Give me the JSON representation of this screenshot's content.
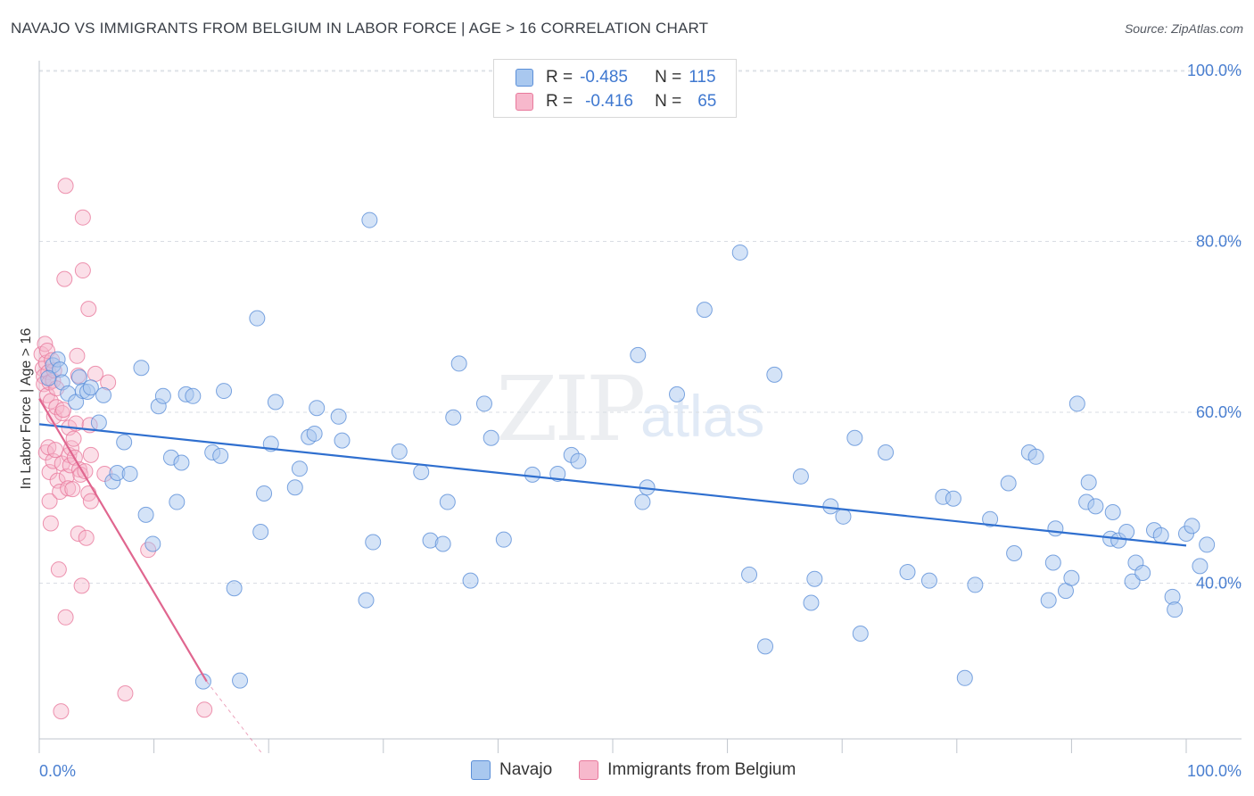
{
  "header": {
    "title": "NAVAJO VS IMMIGRANTS FROM BELGIUM IN LABOR FORCE | AGE > 16 CORRELATION CHART",
    "source": "Source: ZipAtlas.com"
  },
  "watermark": {
    "zip": "ZIP",
    "atlas": "atlas"
  },
  "legend": {
    "rows": [
      {
        "r_label": "R =",
        "r_value": "-0.485",
        "n_label": "N =",
        "n_value": "115"
      },
      {
        "r_label": "R =",
        "r_value": "-0.416",
        "n_label": "N =",
        "n_value": "65"
      }
    ]
  },
  "bottom_legend": {
    "series_a": "Navajo",
    "series_b": "Immigrants from Belgium"
  },
  "colors": {
    "navajo_fill": "#a9c8ef",
    "navajo_stroke": "#5b8fd8",
    "navajo_line": "#2f6fcf",
    "belgium_fill": "#f7b8cc",
    "belgium_stroke": "#e8799c",
    "belgium_line": "#e0668f",
    "tick_text": "#4a7fd0"
  },
  "chart_data": {
    "type": "scatter",
    "title": "NAVAJO VS IMMIGRANTS FROM BELGIUM IN LABOR FORCE | AGE > 16 CORRELATION CHART",
    "xlabel": "",
    "ylabel": "In Labor Force | Age > 16",
    "xlim": [
      0,
      100
    ],
    "ylim": [
      20,
      102
    ],
    "x_tick_labels": [
      "0.0%",
      "100.0%"
    ],
    "y_ticks": [
      40,
      60,
      80,
      100
    ],
    "y_tick_labels": [
      "40.0%",
      "60.0%",
      "80.0%",
      "100.0%"
    ],
    "series": [
      {
        "name": "Navajo",
        "R": -0.485,
        "N": 115,
        "trend": {
          "x": [
            0,
            100
          ],
          "y": [
            58.6,
            44.4
          ]
        },
        "points": [
          [
            1.2,
            65.5
          ],
          [
            1.6,
            66.2
          ],
          [
            1.8,
            65.0
          ],
          [
            2.0,
            63.5
          ],
          [
            2.5,
            62.2
          ],
          [
            3.2,
            61.2
          ],
          [
            3.5,
            64.1
          ],
          [
            3.8,
            62.5
          ],
          [
            4.2,
            62.4
          ],
          [
            4.5,
            62.9
          ],
          [
            5.2,
            58.8
          ],
          [
            5.6,
            62.0
          ],
          [
            6.4,
            51.9
          ],
          [
            6.8,
            52.9
          ],
          [
            7.4,
            56.5
          ],
          [
            7.9,
            52.8
          ],
          [
            8.9,
            65.2
          ],
          [
            9.3,
            48.0
          ],
          [
            9.9,
            44.6
          ],
          [
            10.4,
            60.7
          ],
          [
            10.8,
            61.9
          ],
          [
            11.5,
            54.7
          ],
          [
            12.0,
            49.5
          ],
          [
            12.4,
            54.1
          ],
          [
            12.8,
            62.1
          ],
          [
            13.4,
            61.9
          ],
          [
            14.3,
            28.5
          ],
          [
            15.1,
            55.3
          ],
          [
            15.8,
            54.9
          ],
          [
            16.1,
            62.5
          ],
          [
            17.0,
            39.4
          ],
          [
            17.5,
            28.6
          ],
          [
            19.0,
            71.0
          ],
          [
            19.3,
            46.0
          ],
          [
            19.6,
            50.5
          ],
          [
            20.2,
            56.3
          ],
          [
            20.6,
            61.2
          ],
          [
            22.3,
            51.2
          ],
          [
            22.7,
            53.4
          ],
          [
            23.5,
            57.1
          ],
          [
            24.0,
            57.5
          ],
          [
            24.2,
            60.5
          ],
          [
            26.1,
            59.5
          ],
          [
            26.4,
            56.7
          ],
          [
            28.5,
            38.0
          ],
          [
            28.8,
            82.5
          ],
          [
            29.1,
            44.8
          ],
          [
            31.4,
            55.4
          ],
          [
            33.3,
            53.0
          ],
          [
            34.1,
            45.0
          ],
          [
            35.2,
            44.6
          ],
          [
            35.6,
            49.5
          ],
          [
            36.1,
            59.4
          ],
          [
            36.6,
            65.7
          ],
          [
            37.6,
            40.3
          ],
          [
            38.8,
            61.0
          ],
          [
            39.4,
            57.0
          ],
          [
            40.5,
            45.1
          ],
          [
            43.0,
            52.7
          ],
          [
            45.2,
            52.8
          ],
          [
            46.4,
            55.0
          ],
          [
            47.0,
            54.3
          ],
          [
            52.2,
            66.7
          ],
          [
            52.6,
            49.5
          ],
          [
            53.0,
            51.2
          ],
          [
            55.6,
            62.1
          ],
          [
            58.0,
            72.0
          ],
          [
            61.1,
            78.7
          ],
          [
            61.9,
            41.0
          ],
          [
            63.3,
            32.6
          ],
          [
            64.1,
            64.4
          ],
          [
            66.4,
            52.5
          ],
          [
            67.3,
            37.7
          ],
          [
            67.6,
            40.5
          ],
          [
            69.0,
            49.0
          ],
          [
            70.1,
            47.8
          ],
          [
            71.1,
            57.0
          ],
          [
            71.6,
            34.1
          ],
          [
            73.8,
            55.3
          ],
          [
            75.7,
            41.3
          ],
          [
            77.6,
            40.3
          ],
          [
            78.8,
            50.1
          ],
          [
            79.7,
            49.9
          ],
          [
            80.7,
            28.9
          ],
          [
            81.6,
            39.8
          ],
          [
            82.9,
            47.5
          ],
          [
            84.5,
            51.7
          ],
          [
            85.0,
            43.5
          ],
          [
            86.3,
            55.3
          ],
          [
            86.9,
            54.8
          ],
          [
            88.0,
            38.0
          ],
          [
            88.4,
            42.4
          ],
          [
            88.6,
            46.4
          ],
          [
            89.5,
            39.1
          ],
          [
            90.0,
            40.6
          ],
          [
            90.5,
            61.0
          ],
          [
            91.3,
            49.5
          ],
          [
            91.5,
            51.8
          ],
          [
            92.1,
            49.0
          ],
          [
            93.4,
            45.2
          ],
          [
            93.6,
            48.3
          ],
          [
            94.1,
            45.0
          ],
          [
            94.8,
            46.0
          ],
          [
            95.3,
            40.2
          ],
          [
            95.6,
            42.4
          ],
          [
            96.2,
            41.2
          ],
          [
            97.2,
            46.2
          ],
          [
            97.8,
            45.6
          ],
          [
            98.8,
            38.4
          ],
          [
            99.0,
            36.9
          ],
          [
            100.0,
            45.8
          ],
          [
            100.5,
            46.7
          ],
          [
            101.2,
            42.0
          ],
          [
            101.8,
            44.5
          ],
          [
            0.8,
            64.0
          ]
        ]
      },
      {
        "name": "Immigrants from Belgium",
        "R": -0.416,
        "N": 65,
        "trend": {
          "x": [
            0,
            14.6
          ],
          "y": [
            61.6,
            28.5
          ]
        },
        "trend_dashed": {
          "x": [
            14.6,
            19.4
          ],
          "y": [
            28.5,
            18.2
          ]
        },
        "points": [
          [
            0.2,
            66.8
          ],
          [
            0.3,
            65.1
          ],
          [
            0.4,
            64.2
          ],
          [
            0.4,
            63.3
          ],
          [
            0.5,
            68.0
          ],
          [
            0.6,
            65.8
          ],
          [
            0.7,
            62.0
          ],
          [
            0.7,
            67.2
          ],
          [
            0.8,
            64.7
          ],
          [
            0.9,
            63.5
          ],
          [
            1.0,
            61.3
          ],
          [
            1.1,
            66.1
          ],
          [
            1.2,
            63.7
          ],
          [
            1.3,
            64.9
          ],
          [
            1.5,
            62.8
          ],
          [
            0.6,
            55.3
          ],
          [
            0.8,
            55.9
          ],
          [
            0.9,
            53.0
          ],
          [
            0.9,
            49.6
          ],
          [
            1.0,
            47.0
          ],
          [
            1.2,
            54.3
          ],
          [
            1.3,
            59.5
          ],
          [
            1.4,
            55.6
          ],
          [
            1.5,
            60.6
          ],
          [
            1.6,
            52.0
          ],
          [
            1.7,
            41.6
          ],
          [
            1.8,
            50.7
          ],
          [
            1.9,
            25.0
          ],
          [
            2.0,
            54.0
          ],
          [
            2.0,
            59.9
          ],
          [
            2.1,
            60.3
          ],
          [
            2.2,
            75.6
          ],
          [
            2.3,
            36.0
          ],
          [
            2.3,
            86.5
          ],
          [
            2.4,
            52.5
          ],
          [
            2.5,
            51.1
          ],
          [
            2.6,
            55.0
          ],
          [
            2.6,
            58.2
          ],
          [
            2.7,
            53.8
          ],
          [
            2.8,
            55.8
          ],
          [
            2.9,
            51.0
          ],
          [
            3.0,
            56.9
          ],
          [
            3.1,
            54.7
          ],
          [
            3.2,
            58.7
          ],
          [
            3.3,
            66.6
          ],
          [
            3.4,
            64.3
          ],
          [
            3.4,
            45.8
          ],
          [
            3.5,
            53.3
          ],
          [
            3.6,
            52.7
          ],
          [
            3.7,
            39.7
          ],
          [
            3.8,
            76.6
          ],
          [
            3.8,
            82.8
          ],
          [
            4.0,
            53.1
          ],
          [
            4.1,
            45.3
          ],
          [
            4.3,
            72.1
          ],
          [
            4.3,
            50.5
          ],
          [
            4.4,
            58.5
          ],
          [
            4.5,
            55.0
          ],
          [
            4.5,
            49.6
          ],
          [
            4.9,
            64.5
          ],
          [
            5.7,
            52.8
          ],
          [
            6.0,
            63.5
          ],
          [
            7.5,
            27.1
          ],
          [
            9.5,
            43.9
          ],
          [
            14.4,
            25.2
          ]
        ]
      }
    ]
  }
}
